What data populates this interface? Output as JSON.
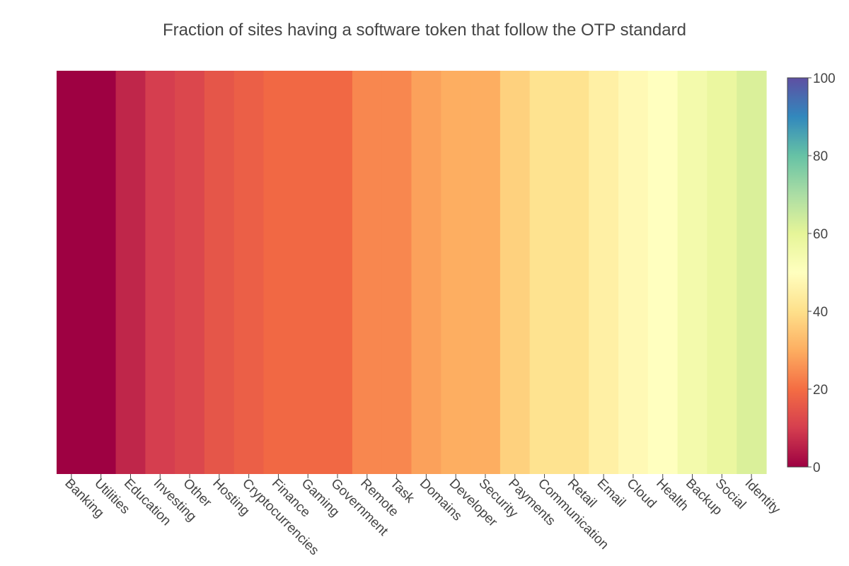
{
  "chart_data": {
    "type": "heatmap",
    "title": "Fraction of sites having a software token that follow the OTP standard",
    "xlabel": "",
    "ylabel": "",
    "categories": [
      "Banking",
      "Utilities",
      "Education",
      "Investing",
      "Other",
      "Hosting",
      "Cryptocurrencies",
      "Finance",
      "Gaming",
      "Government",
      "Remote",
      "Task",
      "Domains",
      "Developer",
      "Security",
      "Payments",
      "Communication",
      "Retail",
      "Email",
      "Cloud",
      "Health",
      "Backup",
      "Social",
      "Identity"
    ],
    "values": [
      0,
      0,
      6,
      10,
      12,
      15,
      17,
      19,
      19,
      19,
      24,
      24,
      28,
      30,
      30,
      37,
      41,
      41,
      45,
      48,
      50,
      55,
      58,
      62
    ],
    "colorscale": {
      "name": "Spectral",
      "range": [
        0,
        100
      ],
      "ticks": [
        0,
        20,
        40,
        60,
        80,
        100
      ]
    },
    "colors": {
      "0": "#9e0142",
      "10": "#d53e4f",
      "20": "#f46d43",
      "30": "#fdae61",
      "40": "#fee08b",
      "50": "#ffffbf",
      "60": "#e6f598",
      "70": "#abdda4",
      "80": "#66c2a5",
      "90": "#3288bd",
      "100": "#5e4fa2"
    },
    "grid": false,
    "legend": "colorbar-right"
  }
}
